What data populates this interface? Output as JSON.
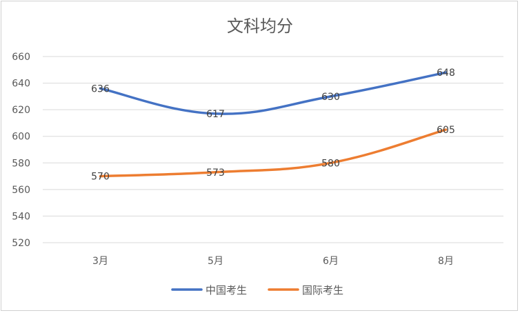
{
  "chart_data": {
    "type": "line",
    "title": "文科均分",
    "categories": [
      "3月",
      "5月",
      "6月",
      "8月"
    ],
    "series": [
      {
        "name": "中国考生",
        "values": [
          636,
          617,
          630,
          648
        ],
        "color": "#4472C4"
      },
      {
        "name": "国际考生",
        "values": [
          570,
          573,
          580,
          605
        ],
        "color": "#ED7D31"
      }
    ],
    "ylim": [
      520,
      660
    ],
    "yticks": [
      520,
      540,
      560,
      580,
      600,
      620,
      640,
      660
    ],
    "xlabel": "",
    "ylabel": "",
    "grid": true,
    "legend": "bottom",
    "data_labels": true
  }
}
